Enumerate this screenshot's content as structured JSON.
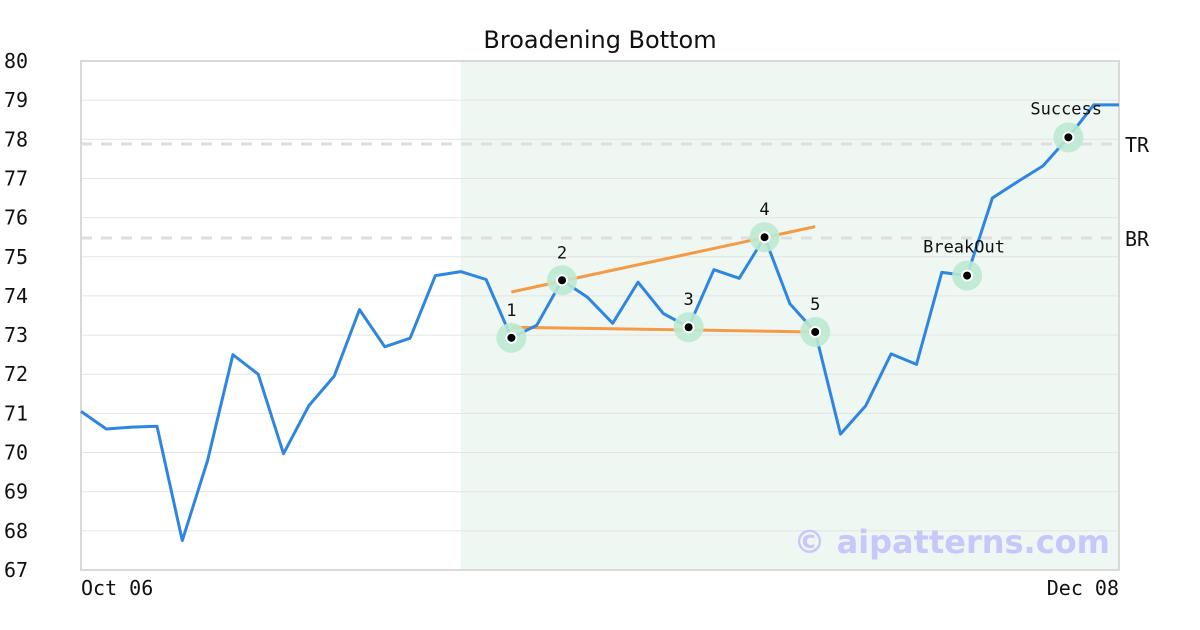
{
  "chart_data": {
    "type": "line",
    "title": "Broadening Bottom",
    "ylim": [
      67,
      80
    ],
    "yticks": [
      67,
      68,
      69,
      70,
      71,
      72,
      73,
      74,
      75,
      76,
      77,
      78,
      79,
      80
    ],
    "x_ticks": [
      "Oct 06",
      "Dec 08"
    ],
    "series": [
      {
        "values": [
          71.05,
          70.6,
          70.65,
          70.67,
          67.75,
          69.8,
          72.5,
          72.0,
          69.97,
          71.2,
          71.95,
          73.65,
          72.7,
          72.92,
          74.52,
          74.62,
          74.42,
          72.93,
          73.25,
          74.4,
          73.97,
          73.3,
          74.35,
          73.55,
          73.2,
          74.67,
          74.45,
          75.5,
          73.8,
          73.08,
          70.47,
          71.2,
          72.52,
          72.25,
          74.6,
          74.52,
          76.5,
          76.92,
          77.32,
          78.05,
          78.88,
          78.88
        ],
        "color": "#2f86e0"
      }
    ],
    "highlight_region": {
      "start_index": 15,
      "end_index": 41,
      "color": "#eef7f2"
    },
    "levels": [
      {
        "label": "TR",
        "value": 77.88
      },
      {
        "label": "BR",
        "value": 75.48
      }
    ],
    "trendlines": [
      {
        "from": [
          17,
          74.1
        ],
        "to": [
          29,
          75.77
        ],
        "color": "#f59b46"
      },
      {
        "from": [
          17,
          73.2
        ],
        "to": [
          29,
          73.08
        ],
        "color": "#f59b46"
      }
    ],
    "points": [
      {
        "label": "1",
        "index": 17,
        "value": 72.93
      },
      {
        "label": "2",
        "index": 19,
        "value": 74.4
      },
      {
        "label": "3",
        "index": 24,
        "value": 73.2
      },
      {
        "label": "4",
        "index": 27,
        "value": 75.5
      },
      {
        "label": "5",
        "index": 29,
        "value": 73.08
      }
    ],
    "annotations": [
      {
        "label": "BreakOut",
        "index": 35,
        "value": 74.52
      },
      {
        "label": "Success",
        "index": 39,
        "value": 78.05
      }
    ],
    "watermark": "© aipatterns.com",
    "grid": true
  }
}
